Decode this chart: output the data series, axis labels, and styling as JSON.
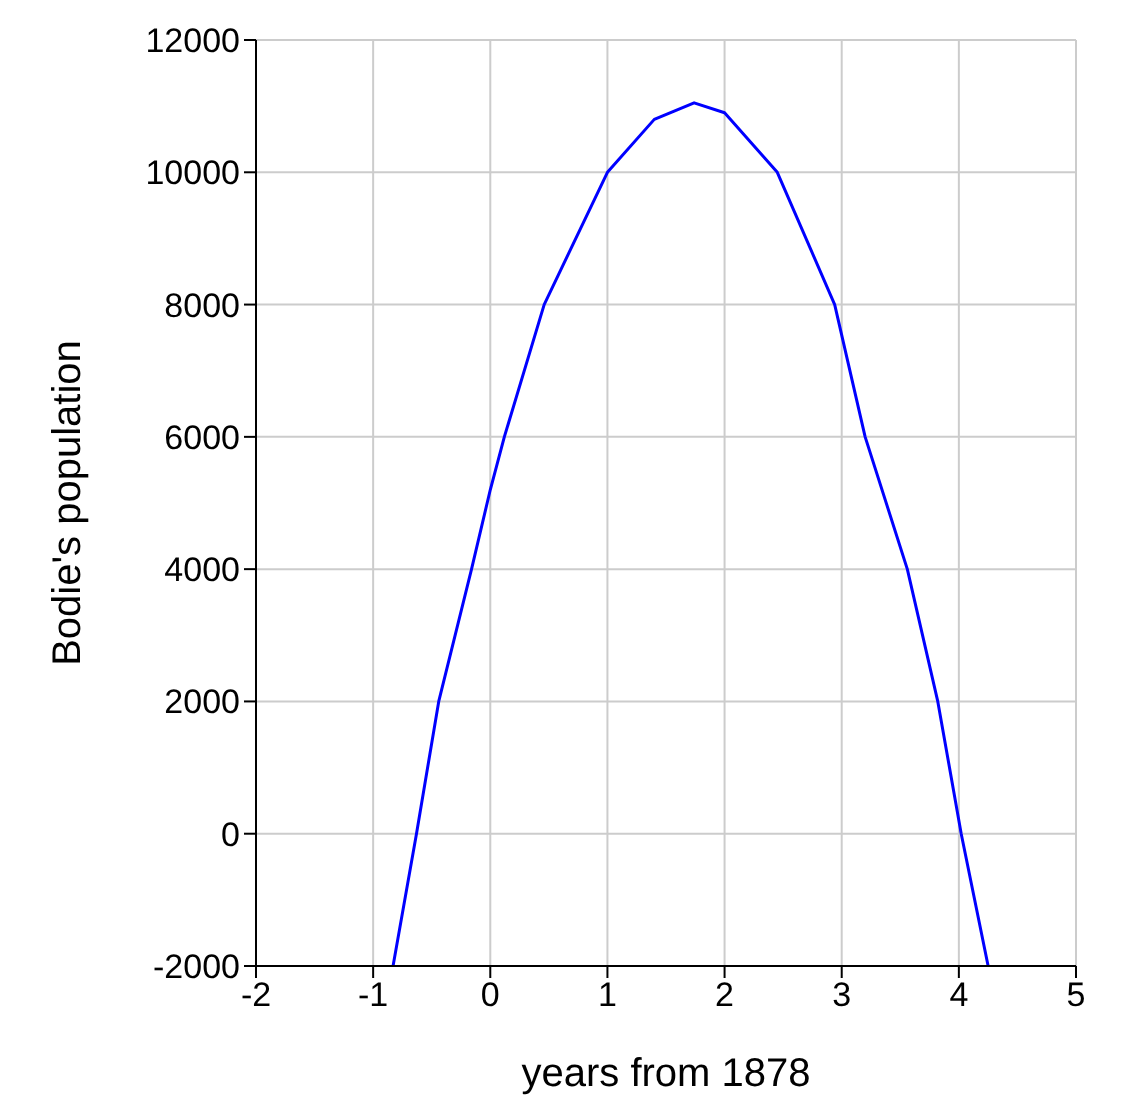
{
  "chart_data": {
    "type": "line",
    "xlabel": "years from 1878",
    "ylabel": "Bodie's population",
    "xlim": [
      -2,
      5
    ],
    "xticks": [
      -2,
      -1,
      0,
      1,
      2,
      3,
      4,
      5
    ],
    "ylim": [
      -2000,
      12000
    ],
    "yticks": [
      -2000,
      0,
      2000,
      4000,
      6000,
      8000,
      10000,
      12000
    ],
    "grid": true,
    "marker": "none",
    "line_style": "solid",
    "series": [
      {
        "color": "#0000ff",
        "x": [
          -0.83,
          -0.63,
          -0.44,
          -0.16,
          0,
          0.12,
          0.46,
          1,
          1.4,
          1.74,
          2,
          2.45,
          2.94,
          3.2,
          3.56,
          3.82,
          4.02,
          4.25
        ],
        "values": [
          -2000,
          0,
          2000,
          4000,
          5200,
          6000,
          8000,
          10000,
          10800,
          11050,
          10900,
          10000,
          8000,
          6000,
          4000,
          2000,
          0,
          -2000
        ]
      }
    ]
  }
}
